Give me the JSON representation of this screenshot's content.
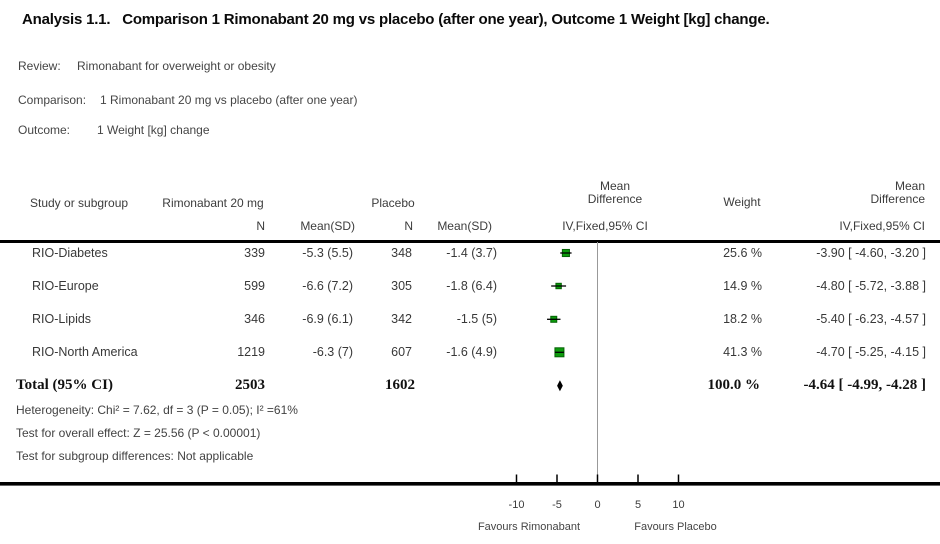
{
  "title": "Analysis 1.1.   Comparison 1 Rimonabant 20 mg vs placebo (after one year), Outcome 1 Weight [kg] change.",
  "meta": {
    "review_label": "Review:",
    "review_value": "Rimonabant for overweight or obesity",
    "comparison_label": "Comparison:",
    "comparison_value": "1 Rimonabant 20 mg vs placebo (after one year)",
    "outcome_label": "Outcome:",
    "outcome_value": "1 Weight [kg] change"
  },
  "table": {
    "headers": {
      "study": "Study or subgroup",
      "group1": "Rimonabant 20 mg",
      "group2": "Placebo",
      "n1": "N",
      "mean_sd1": "Mean(SD)",
      "n2": "N",
      "mean_sd2": "Mean(SD)",
      "effect_line1": "Mean",
      "effect_line2": "Difference",
      "effect_method": "IV,Fixed,95% CI",
      "weight": "Weight"
    },
    "rows": [
      {
        "study": "RIO-Diabetes",
        "n1": "339",
        "mean1": "-5.3 (5.5)",
        "n2": "348",
        "mean2": "-1.4 (3.7)",
        "weight": "25.6 %",
        "ci": "-3.90 [ -4.60, -3.20 ]"
      },
      {
        "study": "RIO-Europe",
        "n1": "599",
        "mean1": "-6.6 (7.2)",
        "n2": "305",
        "mean2": "-1.8 (6.4)",
        "weight": "14.9 %",
        "ci": "-4.80 [ -5.72, -3.88 ]"
      },
      {
        "study": "RIO-Lipids",
        "n1": "346",
        "mean1": "-6.9 (6.1)",
        "n2": "342",
        "mean2": "-1.5 (5)",
        "weight": "18.2 %",
        "ci": "-5.40 [ -6.23, -4.57 ]"
      },
      {
        "study": "RIO-North America",
        "n1": "1219",
        "mean1": "-6.3 (7)",
        "n2": "607",
        "mean2": "-1.6 (4.9)",
        "weight": "41.3 %",
        "ci": "-4.70 [ -5.25, -4.15 ]"
      }
    ],
    "total": {
      "label": "Total (95% CI)",
      "n1": "2503",
      "n2": "1602",
      "weight": "100.0 %",
      "ci": "-4.64 [ -4.99, -4.28 ]"
    },
    "footnotes": [
      "Heterogeneity: Chi² = 7.62, df = 3 (P = 0.05); I² =61%",
      "Test for overall effect: Z = 25.56 (P < 0.00001)",
      "Test for subgroup differences: Not applicable"
    ]
  },
  "axis": {
    "ticks": [
      "-10",
      "-5",
      "0",
      "5",
      "10"
    ],
    "left_label": "Favours Rimonabant",
    "right_label": "Favours Placebo"
  },
  "colors": {
    "marker_green": "#0c9c0c",
    "marker_border": "#066306",
    "diamond_black": "#000000",
    "zero_line_gray": "#999999",
    "axis_black": "#000000"
  },
  "chart_data": {
    "type": "scatter",
    "subtype": "forest-plot",
    "effect_measure": "Mean Difference (IV,Fixed,95% CI)",
    "x_axis": {
      "tick_values": [
        -10,
        -5,
        0,
        5,
        10
      ],
      "label_left": "Favours Rimonabant",
      "label_right": "Favours Placebo"
    },
    "studies": [
      {
        "name": "RIO-Diabetes",
        "md": -3.9,
        "ci_low": -4.6,
        "ci_high": -3.2,
        "weight_pct": 25.6
      },
      {
        "name": "RIO-Europe",
        "md": -4.8,
        "ci_low": -5.72,
        "ci_high": -3.88,
        "weight_pct": 14.9
      },
      {
        "name": "RIO-Lipids",
        "md": -5.4,
        "ci_low": -6.23,
        "ci_high": -4.57,
        "weight_pct": 18.2
      },
      {
        "name": "RIO-North America",
        "md": -4.7,
        "ci_low": -5.25,
        "ci_high": -4.15,
        "weight_pct": 41.3
      }
    ],
    "total": {
      "name": "Total (95% CI)",
      "md": -4.64,
      "ci_low": -4.99,
      "ci_high": -4.28,
      "weight_pct": 100.0
    }
  }
}
